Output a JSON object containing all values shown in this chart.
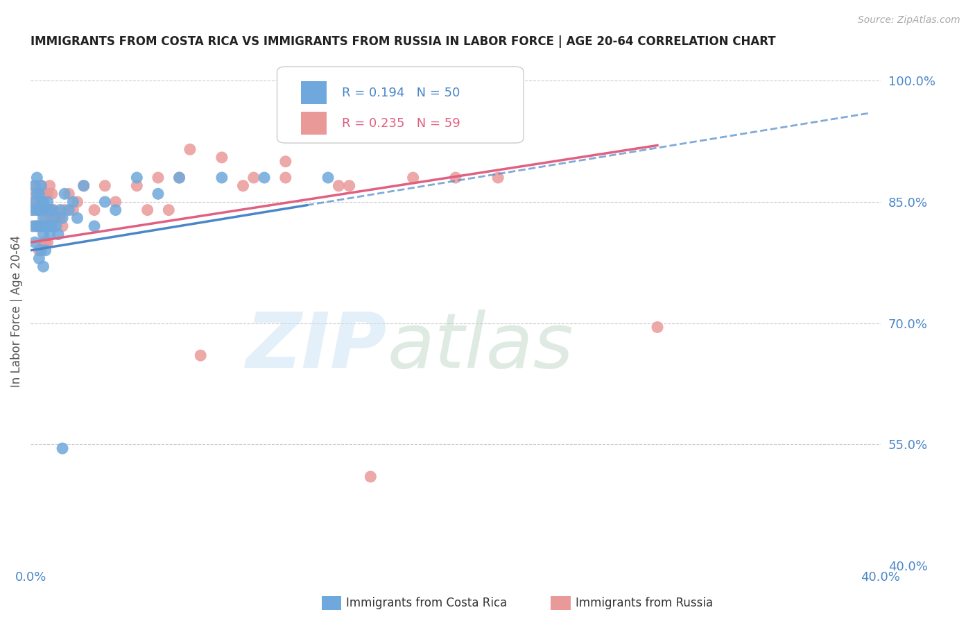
{
  "title": "IMMIGRANTS FROM COSTA RICA VS IMMIGRANTS FROM RUSSIA IN LABOR FORCE | AGE 20-64 CORRELATION CHART",
  "source": "Source: ZipAtlas.com",
  "ylabel": "In Labor Force | Age 20-64",
  "xlim": [
    0.0,
    0.4
  ],
  "ylim": [
    0.4,
    1.03
  ],
  "xticks": [
    0.0,
    0.05,
    0.1,
    0.15,
    0.2,
    0.25,
    0.3,
    0.35,
    0.4
  ],
  "xticklabels": [
    "0.0%",
    "",
    "",
    "",
    "",
    "",
    "",
    "",
    "40.0%"
  ],
  "yticks": [
    0.4,
    0.55,
    0.7,
    0.85,
    1.0
  ],
  "yticklabels": [
    "40.0%",
    "55.0%",
    "70.0%",
    "85.0%",
    "100.0%"
  ],
  "color_cr": "#6fa8dc",
  "color_ru": "#ea9999",
  "line_color_cr": "#4a86c8",
  "line_color_ru": "#e06080",
  "R_cr": 0.194,
  "N_cr": 50,
  "R_ru": 0.235,
  "N_ru": 59,
  "cr_x": [
    0.001,
    0.001,
    0.002,
    0.002,
    0.002,
    0.003,
    0.003,
    0.003,
    0.003,
    0.004,
    0.004,
    0.004,
    0.004,
    0.005,
    0.005,
    0.005,
    0.005,
    0.006,
    0.006,
    0.006,
    0.006,
    0.007,
    0.007,
    0.007,
    0.008,
    0.008,
    0.009,
    0.009,
    0.01,
    0.01,
    0.011,
    0.012,
    0.013,
    0.014,
    0.015,
    0.016,
    0.018,
    0.02,
    0.022,
    0.025,
    0.03,
    0.035,
    0.04,
    0.05,
    0.06,
    0.07,
    0.09,
    0.11,
    0.015,
    0.14
  ],
  "cr_y": [
    0.84,
    0.82,
    0.87,
    0.85,
    0.8,
    0.88,
    0.86,
    0.84,
    0.82,
    0.86,
    0.84,
    0.82,
    0.78,
    0.87,
    0.85,
    0.82,
    0.79,
    0.85,
    0.83,
    0.81,
    0.77,
    0.84,
    0.82,
    0.79,
    0.85,
    0.82,
    0.84,
    0.81,
    0.84,
    0.82,
    0.83,
    0.82,
    0.81,
    0.84,
    0.83,
    0.86,
    0.84,
    0.85,
    0.83,
    0.87,
    0.82,
    0.85,
    0.84,
    0.88,
    0.86,
    0.88,
    0.88,
    0.88,
    0.545,
    0.88
  ],
  "ru_x": [
    0.001,
    0.001,
    0.002,
    0.002,
    0.002,
    0.003,
    0.003,
    0.003,
    0.004,
    0.004,
    0.004,
    0.005,
    0.005,
    0.005,
    0.006,
    0.006,
    0.006,
    0.007,
    0.007,
    0.007,
    0.008,
    0.008,
    0.008,
    0.009,
    0.009,
    0.01,
    0.01,
    0.011,
    0.012,
    0.013,
    0.014,
    0.015,
    0.016,
    0.018,
    0.02,
    0.022,
    0.025,
    0.03,
    0.035,
    0.04,
    0.05,
    0.06,
    0.07,
    0.08,
    0.1,
    0.12,
    0.15,
    0.18,
    0.2,
    0.22,
    0.12,
    0.145,
    0.09,
    0.105,
    0.075,
    0.065,
    0.055,
    0.295,
    0.16
  ],
  "ru_y": [
    0.86,
    0.84,
    0.87,
    0.85,
    0.82,
    0.86,
    0.84,
    0.82,
    0.86,
    0.84,
    0.79,
    0.87,
    0.85,
    0.82,
    0.86,
    0.84,
    0.8,
    0.86,
    0.83,
    0.8,
    0.86,
    0.84,
    0.8,
    0.87,
    0.84,
    0.86,
    0.83,
    0.84,
    0.83,
    0.83,
    0.83,
    0.82,
    0.84,
    0.86,
    0.84,
    0.85,
    0.87,
    0.84,
    0.87,
    0.85,
    0.87,
    0.88,
    0.88,
    0.66,
    0.87,
    0.88,
    0.87,
    0.88,
    0.88,
    0.88,
    0.9,
    0.87,
    0.905,
    0.88,
    0.915,
    0.84,
    0.84,
    0.695,
    0.51
  ],
  "trend_cr_x0": 0.0,
  "trend_cr_x1": 0.395,
  "trend_cr_y0": 0.79,
  "trend_cr_y1": 0.96,
  "trend_ru_x0": 0.0,
  "trend_ru_x1": 0.295,
  "trend_ru_y0": 0.8,
  "trend_ru_y1": 0.92
}
